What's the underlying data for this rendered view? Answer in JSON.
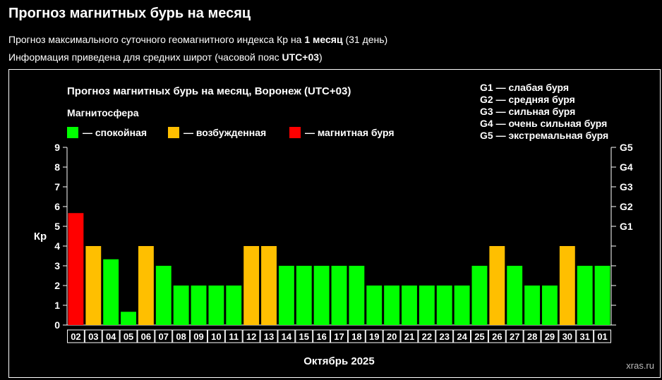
{
  "header": {
    "title": "Прогноз магнитных бурь на месяц",
    "line1_pre": "Прогноз максимального суточного геомагнитного индекса Кр на ",
    "line1_bold": "1 месяц",
    "line1_post": " (31 день)",
    "line2_pre": "Информация приведена для средних широт (часовой пояс ",
    "line2_bold": "UTC+03",
    "line2_post": ")"
  },
  "chart_data": {
    "type": "bar",
    "title": "Прогноз магнитных бурь на месяц, Воронеж (UTC+03)",
    "xlabel": "Октябрь 2025",
    "ylabel": "Кр",
    "ylim": [
      0,
      9
    ],
    "yticks": [
      "0",
      "1",
      "2",
      "3",
      "4",
      "5",
      "6",
      "7",
      "8",
      "9"
    ],
    "right_ticks": [
      {
        "value": 5,
        "label": "G1"
      },
      {
        "value": 6,
        "label": "G2"
      },
      {
        "value": 7,
        "label": "G3"
      },
      {
        "value": 8,
        "label": "G4"
      },
      {
        "value": 9,
        "label": "G5"
      }
    ],
    "grid": false,
    "legend_title": "Магнитосфера",
    "legend": [
      {
        "label": "— спокойная",
        "color": "#00ff00"
      },
      {
        "label": "— возбужденная",
        "color": "#ffbf00"
      },
      {
        "label": "— магнитная буря",
        "color": "#ff0000"
      }
    ],
    "g_scale": [
      "G1 — слабая буря",
      "G2 — средняя буря",
      "G3 — сильная буря",
      "G4 — очень сильная буря",
      "G5 — экстремальная буря"
    ],
    "categories": [
      "02",
      "03",
      "04",
      "05",
      "06",
      "07",
      "08",
      "09",
      "10",
      "11",
      "12",
      "13",
      "14",
      "15",
      "16",
      "17",
      "18",
      "19",
      "20",
      "21",
      "22",
      "23",
      "24",
      "25",
      "26",
      "27",
      "28",
      "29",
      "30",
      "31",
      "01"
    ],
    "values": [
      5.67,
      4,
      3.33,
      0.67,
      4,
      3,
      2,
      2,
      2,
      2,
      4,
      4,
      3,
      3,
      3,
      3,
      3,
      2,
      2,
      2,
      2,
      2,
      2,
      3,
      4,
      3,
      2,
      2,
      4,
      3,
      3
    ],
    "levels": [
      "storm",
      "active",
      "quiet",
      "quiet",
      "active",
      "quiet",
      "quiet",
      "quiet",
      "quiet",
      "quiet",
      "active",
      "active",
      "quiet",
      "quiet",
      "quiet",
      "quiet",
      "quiet",
      "quiet",
      "quiet",
      "quiet",
      "quiet",
      "quiet",
      "quiet",
      "quiet",
      "active",
      "quiet",
      "quiet",
      "quiet",
      "active",
      "quiet",
      "quiet"
    ],
    "colors": {
      "quiet": "#00ff00",
      "active": "#ffbf00",
      "storm": "#ff0000"
    },
    "watermark": "xras.ru"
  }
}
